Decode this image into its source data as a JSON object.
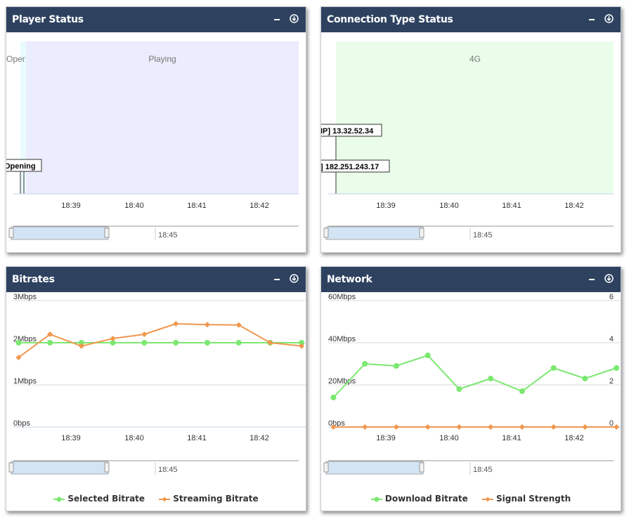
{
  "panels": {
    "player_status": {
      "title": "Player Status",
      "bands": [
        {
          "label": "Oper",
          "start": "18:38:10",
          "end": "18:38:20"
        },
        {
          "label": "Playing",
          "start": "18:38:20",
          "end": "18:42:40"
        }
      ],
      "flag": "Opening",
      "x_ticks": [
        "18:39",
        "18:40",
        "18:41",
        "18:42"
      ],
      "navigator_label": "18:45"
    },
    "connection_status": {
      "title": "Connection Type Status",
      "bands": [
        {
          "label": "4G",
          "start": "18:38:15",
          "end": "18:42:40"
        }
      ],
      "flags": [
        "IP] 13.32.52.34",
        "] 182.251.243.17"
      ],
      "x_ticks": [
        "18:39",
        "18:40",
        "18:41",
        "18:42"
      ],
      "navigator_label": "18:45"
    },
    "bitrates": {
      "title": "Bitrates",
      "y_ticks": [
        "3Mbps",
        "2Mbps",
        "1Mbps",
        "0bps"
      ],
      "x_ticks": [
        "18:39",
        "18:40",
        "18:41",
        "18:42"
      ],
      "navigator_label": "18:45",
      "legend": [
        "Selected Bitrate",
        "Streaming Bitrate"
      ]
    },
    "network": {
      "title": "Network",
      "y_ticks_left": [
        "60Mbps",
        "40Mbps",
        "20Mbps",
        "0bps"
      ],
      "y_ticks_right": [
        "6",
        "4",
        "2",
        "0"
      ],
      "x_ticks": [
        "18:39",
        "18:40",
        "18:41",
        "18:42"
      ],
      "navigator_label": "18:45",
      "legend": [
        "Download Bitrate",
        "Signal Strength"
      ]
    }
  },
  "colors": {
    "header": "#2e4260",
    "green": "#7be870",
    "orange": "#f0974e",
    "playing_band": "#ececff",
    "opening_band": "#e8fbff",
    "band_4g": "#eafdea",
    "navigator": "#d3e4f5"
  },
  "chart_data": [
    {
      "type": "line",
      "name": "Bitrates",
      "x": [
        "18:38:10",
        "18:38:40",
        "18:39:10",
        "18:39:40",
        "18:40:10",
        "18:40:40",
        "18:41:10",
        "18:41:40",
        "18:42:10",
        "18:42:40"
      ],
      "series": [
        {
          "name": "Selected Bitrate",
          "color": "#7be870",
          "unit": "Mbps",
          "values": [
            2.0,
            2.0,
            2.0,
            2.0,
            2.0,
            2.0,
            2.0,
            2.0,
            2.0,
            2.0
          ]
        },
        {
          "name": "Streaming Bitrate",
          "color": "#f0974e",
          "unit": "Mbps",
          "values": [
            1.65,
            2.2,
            1.92,
            2.1,
            2.2,
            2.45,
            2.43,
            2.42,
            2.0,
            1.92
          ]
        }
      ],
      "ylim": [
        0,
        3
      ],
      "legend": "bottom"
    },
    {
      "type": "line",
      "name": "Network",
      "x": [
        "18:38:10",
        "18:38:40",
        "18:39:10",
        "18:39:40",
        "18:40:10",
        "18:40:40",
        "18:41:10",
        "18:41:40",
        "18:42:10",
        "18:42:40"
      ],
      "series": [
        {
          "name": "Download Bitrate",
          "color": "#7be870",
          "unit": "Mbps",
          "axis": "left",
          "values": [
            14,
            30,
            29,
            34,
            18,
            23,
            17,
            28,
            23,
            28
          ]
        },
        {
          "name": "Signal Strength",
          "color": "#f0974e",
          "axis": "right",
          "values": [
            0,
            0,
            0,
            0,
            0,
            0,
            0,
            0,
            0,
            0
          ]
        }
      ],
      "ylim_left": [
        0,
        60
      ],
      "ylim_right": [
        0,
        6
      ],
      "legend": "bottom"
    }
  ]
}
